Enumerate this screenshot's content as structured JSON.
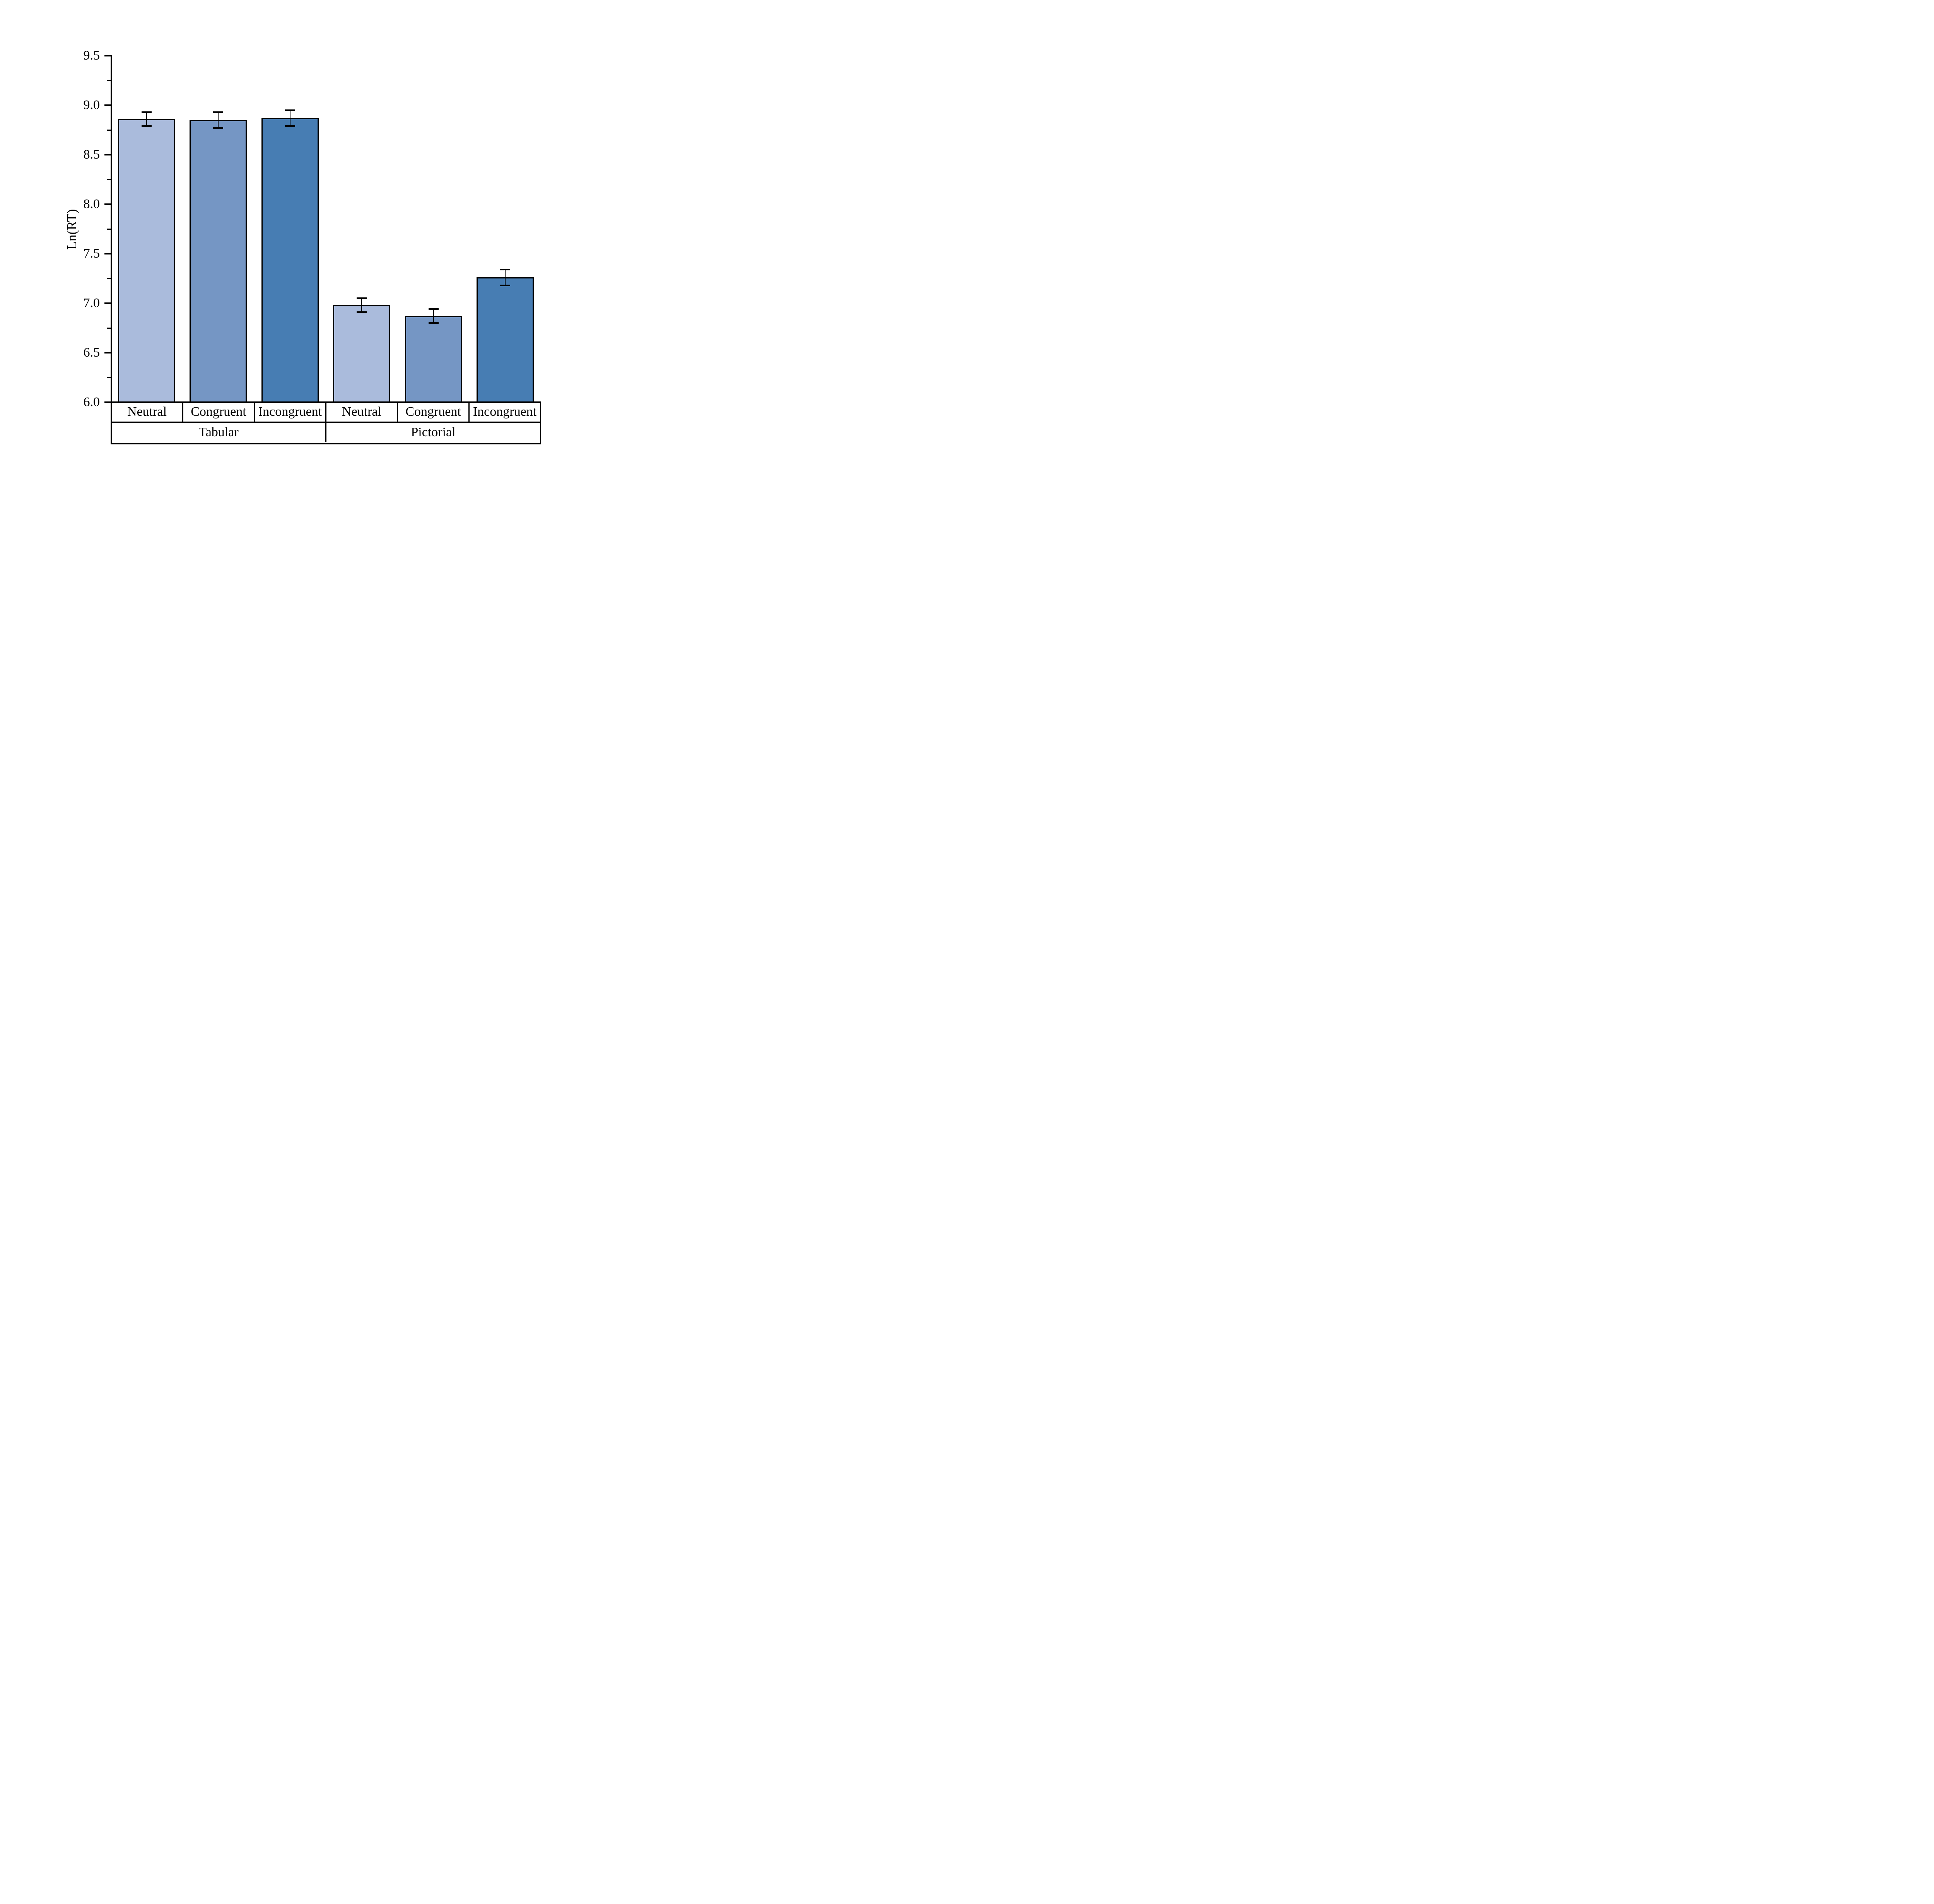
{
  "chart_data": {
    "type": "bar",
    "title": "",
    "ylabel": "Ln(RT)",
    "ylim": [
      6.0,
      9.5
    ],
    "y_major_step": 0.5,
    "y_minor_step": 0.25,
    "y_major_tick_labels": [
      "6.0",
      "6.5",
      "7.0",
      "7.5",
      "8.0",
      "8.5",
      "9.0",
      "9.5"
    ],
    "grid": "off",
    "legend": "none",
    "error_bars": "on",
    "categories": [
      "Neutral",
      "Congruent",
      "Incongruent"
    ],
    "groups": [
      {
        "label": "Tabular",
        "conditions": [
          "Neutral",
          "Congruent",
          "Incongruent"
        ],
        "values": [
          8.86,
          8.85,
          8.87
        ],
        "errors": [
          0.07,
          0.08,
          0.08
        ]
      },
      {
        "label": "Pictorial",
        "conditions": [
          "Neutral",
          "Congruent",
          "Incongruent"
        ],
        "values": [
          6.98,
          6.87,
          7.26
        ],
        "errors": [
          0.07,
          0.07,
          0.08
        ]
      }
    ],
    "bar_colors": [
      "#AABBDC",
      "#7596C4",
      "#477DB3"
    ],
    "bar_border_color": "#000000",
    "axis_color": "#000000",
    "background": "#FFFFFF"
  }
}
